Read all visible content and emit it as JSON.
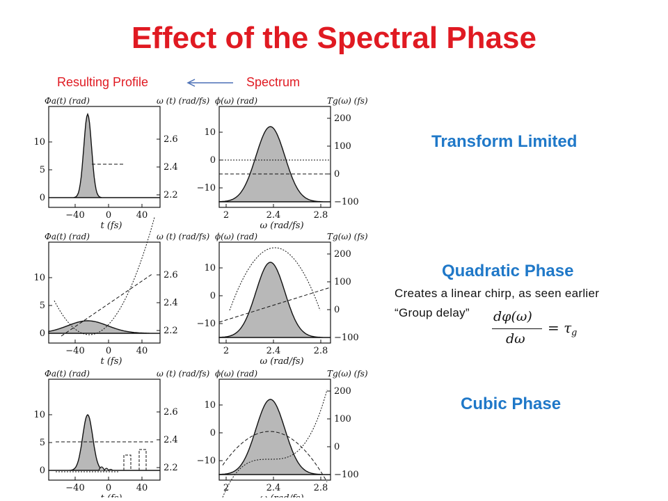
{
  "title": "Effect of the Spectral Phase",
  "header": {
    "left": "Resulting Profile",
    "right": "Spectrum"
  },
  "labels": {
    "transform": "Transform Limited",
    "quadratic": "Quadratic Phase",
    "cubic": "Cubic Phase"
  },
  "notes": {
    "chirp": "Creates a linear chirp, as seen earlier",
    "group_delay": "“Group delay”"
  },
  "equation": {
    "numerator": "dφ(ω)",
    "denominator": "dω",
    "rhs": "= τ",
    "sub": "g"
  },
  "time_panel": {
    "left_label": "Φa(t) (rad)",
    "right_label": "ω (t) (rad/fs)",
    "xlabel": "t (fs)",
    "xticks": [
      "−40",
      "0",
      "40"
    ],
    "yticks_left": [
      "0",
      "5",
      "10"
    ],
    "yticks_right": [
      "2.2",
      "2.4",
      "2.6"
    ]
  },
  "freq_panel": {
    "left_label": "ϕ(ω) (rad)",
    "right_label": "Tg(ω) (fs)",
    "xlabel": "ω (rad/fs)",
    "xticks": [
      "2",
      "2.4",
      "2.8"
    ],
    "yticks_left": [
      "−10",
      "0",
      "10"
    ],
    "yticks_right": [
      "−100",
      "0",
      "100",
      "200"
    ]
  },
  "figure_alt": "Six-panel figure: temporal profile and spectrum for transform limited, quadratic and cubic spectral phase"
}
